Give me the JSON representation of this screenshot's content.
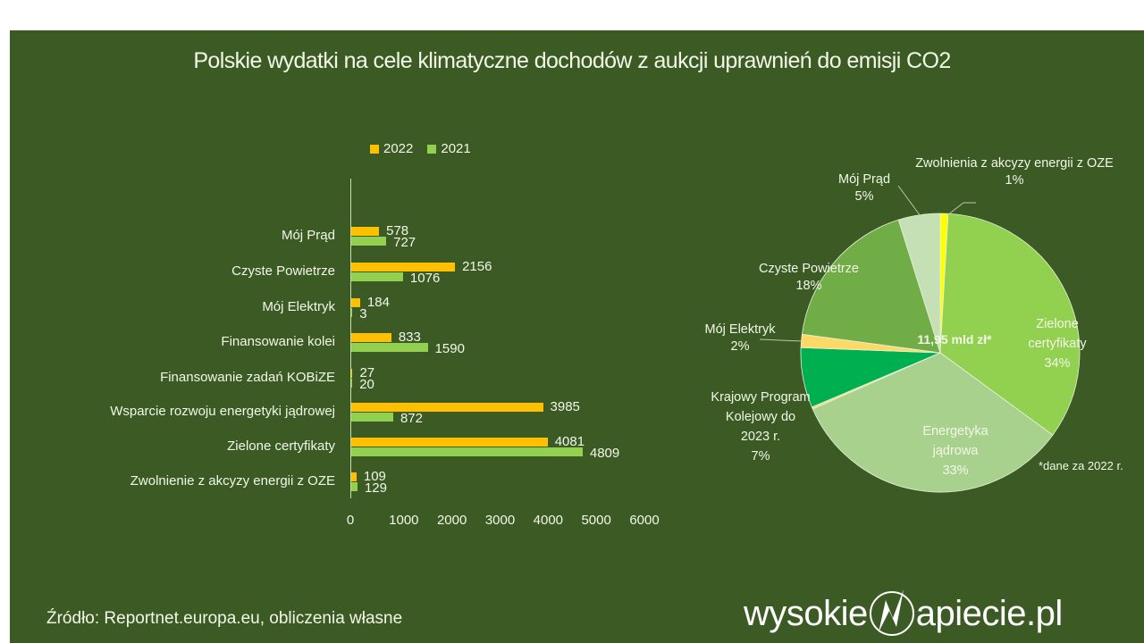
{
  "title": "Polskie wydatki na cele klimatyczne dochodów z aukcji uprawnień do emisji CO2",
  "source": "Źródło: Reportnet.europa.eu, obliczenia własne",
  "logo": {
    "left": "wysokie",
    "right": "apiecie.pl",
    "glyph": "N"
  },
  "colors": {
    "background": "#3c5a24",
    "bar2022": "#ffc000",
    "bar2021": "#92d050",
    "text": "#f2f7e8"
  },
  "chart_data": [
    {
      "type": "bar",
      "orientation": "horizontal",
      "title": "",
      "legend": [
        "2022",
        "2021"
      ],
      "legend_position": "top",
      "categories": [
        "Mój Prąd",
        "Czyste Powietrze",
        "Mój Elektryk",
        "Finansowanie kolei",
        "Finansowanie zadań KOBiZE",
        "Wsparcie rozwoju energetyki jądrowej",
        "Zielone certyfikaty",
        "Zwolnienie z akcyzy energii z OZE"
      ],
      "series": [
        {
          "name": "2022",
          "color": "#ffc000",
          "values": [
            578,
            2156,
            184,
            833,
            27,
            3985,
            4081,
            109
          ]
        },
        {
          "name": "2021",
          "color": "#92d050",
          "values": [
            727,
            1076,
            3,
            1590,
            20,
            872,
            4809,
            129
          ]
        }
      ],
      "xlim": [
        0,
        6000
      ],
      "xticks": [
        "0",
        "1000",
        "2000",
        "3000",
        "4000",
        "5000",
        "6000"
      ],
      "grid": false,
      "data_labels": true
    },
    {
      "type": "pie",
      "center_label": "11,95 mld zł*",
      "note": "*dane za 2022 r.",
      "slices": [
        {
          "label": "Zwolnienia z akcyzy energii z OZE",
          "pct": "1%",
          "value": 109,
          "color": "#ffff00"
        },
        {
          "label": "Zielone certyfikaty",
          "pct": "34%",
          "value": 4081,
          "color": "#92d050"
        },
        {
          "label": "Energetyka jądrowa",
          "pct": "33%",
          "value": 3985,
          "color": "#a9d18e"
        },
        {
          "label": "KOBiZE",
          "pct": "",
          "value": 27,
          "color": "#ffd966"
        },
        {
          "label": "Krajowy Program Kolejowy do 2023 r.",
          "pct": "7%",
          "value": 833,
          "color": "#00b050"
        },
        {
          "label": "Mój Elektryk",
          "pct": "2%",
          "value": 184,
          "color": "#ffd966"
        },
        {
          "label": "Czyste Powietrze",
          "pct": "18%",
          "value": 2156,
          "color": "#70ad47"
        },
        {
          "label": "Mój Prąd",
          "pct": "5%",
          "value": 578,
          "color": "#c5e0b4"
        }
      ]
    }
  ],
  "pie_labels": {
    "zwolnienia": {
      "name": "Zwolnienia z akcyzy energii z OZE",
      "pct": "1%"
    },
    "moj_prad": {
      "name": "Mój Prąd",
      "pct": "5%"
    },
    "czyste": {
      "name": "Czyste Powietrze",
      "pct": "18%"
    },
    "elektryk": {
      "name": "Mój Elektryk",
      "pct": "2%"
    },
    "kolej": {
      "line1": "Krajowy Program",
      "line2": "Kolejowy do",
      "line3": "2023 r.",
      "pct": "7%"
    },
    "zielone": {
      "line1": "Zielone",
      "line2": "certyfikaty",
      "pct": "34%"
    },
    "jadrowa": {
      "line1": "Energetyka",
      "line2": "jądrowa",
      "pct": "33%"
    }
  }
}
